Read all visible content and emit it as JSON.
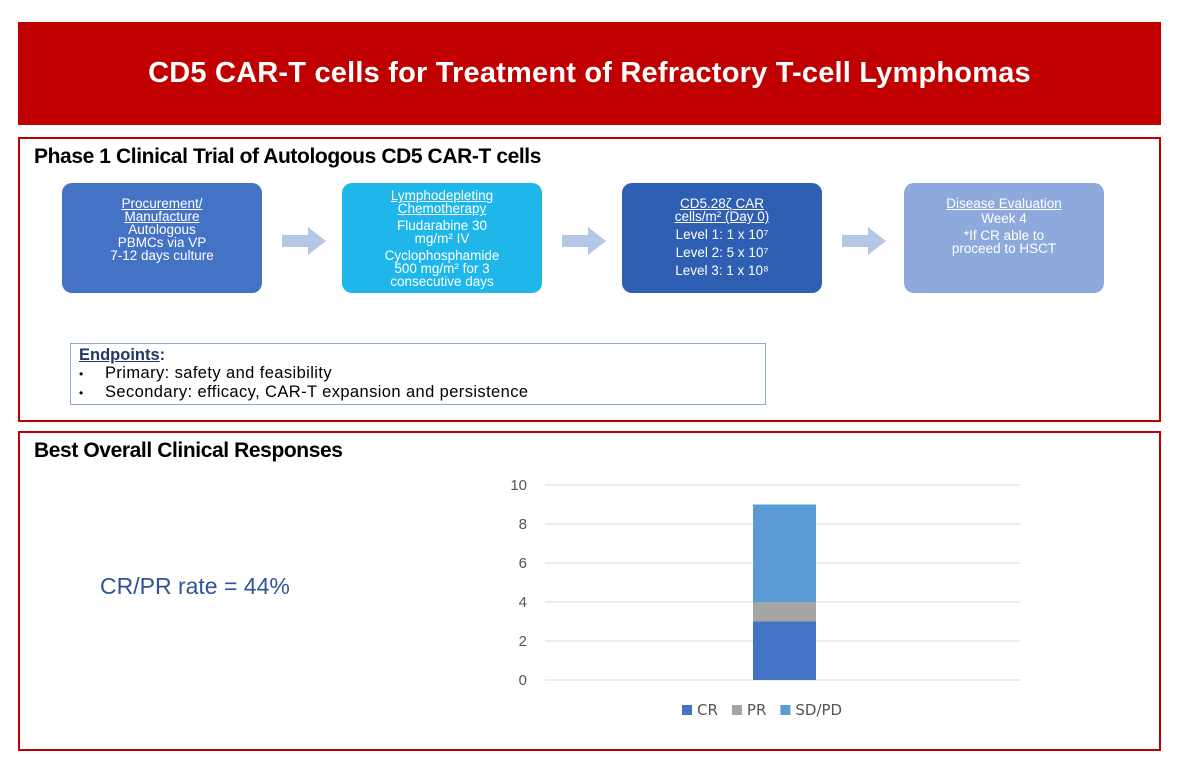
{
  "title": "CD5 CAR-T cells for Treatment of Refractory  T-cell Lymphomas",
  "trial": {
    "heading": "Phase 1 Clinical Trial of Autologous CD5 CAR-T cells",
    "steps": [
      {
        "title": [
          "Procurement/",
          "Manufacture"
        ],
        "lines": [
          "Autologous",
          "PBMCs via VP",
          "7-12 days culture"
        ],
        "color": "#4472c4"
      },
      {
        "title": [
          "Lymphodepleting",
          "Chemotherapy"
        ],
        "lines": [
          "Fludarabine 30",
          "mg/m² IV",
          "Cyclophosphamide",
          "500 mg/m² for 3",
          "consecutive days"
        ],
        "color": "#1fb7ea"
      },
      {
        "title": [
          "CD5.28ζ CAR",
          "cells/m² (Day 0)"
        ],
        "lines": [
          "Level 1: 1 x 10⁷",
          "Level 2: 5 x 10⁷",
          "Level 3: 1 x 10⁸"
        ],
        "color": "#2f5fb3"
      },
      {
        "title": [
          "Disease Evaluation"
        ],
        "lines": [
          "Week 4",
          "*If CR able to",
          "proceed to HSCT"
        ],
        "color": "#8ea9db"
      }
    ],
    "endpoints": {
      "title": "Endpoints",
      "items": [
        "Primary: safety and feasibility",
        "Secondary: efficacy, CAR-T expansion and persistence"
      ]
    }
  },
  "responses": {
    "heading": "Best Overall Clinical Responses",
    "rate_text": "CR/PR rate = 44%"
  },
  "chart_data": {
    "type": "bar",
    "stacked": true,
    "categories": [
      ""
    ],
    "series": [
      {
        "name": "CR",
        "values": [
          3
        ],
        "color": "#4472c4"
      },
      {
        "name": "PR",
        "values": [
          1
        ],
        "color": "#a5a5a5"
      },
      {
        "name": "SD/PD",
        "values": [
          5
        ],
        "color": "#5b9bd5"
      }
    ],
    "ylim": [
      0,
      10
    ],
    "yticks": [
      0,
      2,
      4,
      6,
      8,
      10
    ],
    "grid": true,
    "legend": "bottom"
  }
}
